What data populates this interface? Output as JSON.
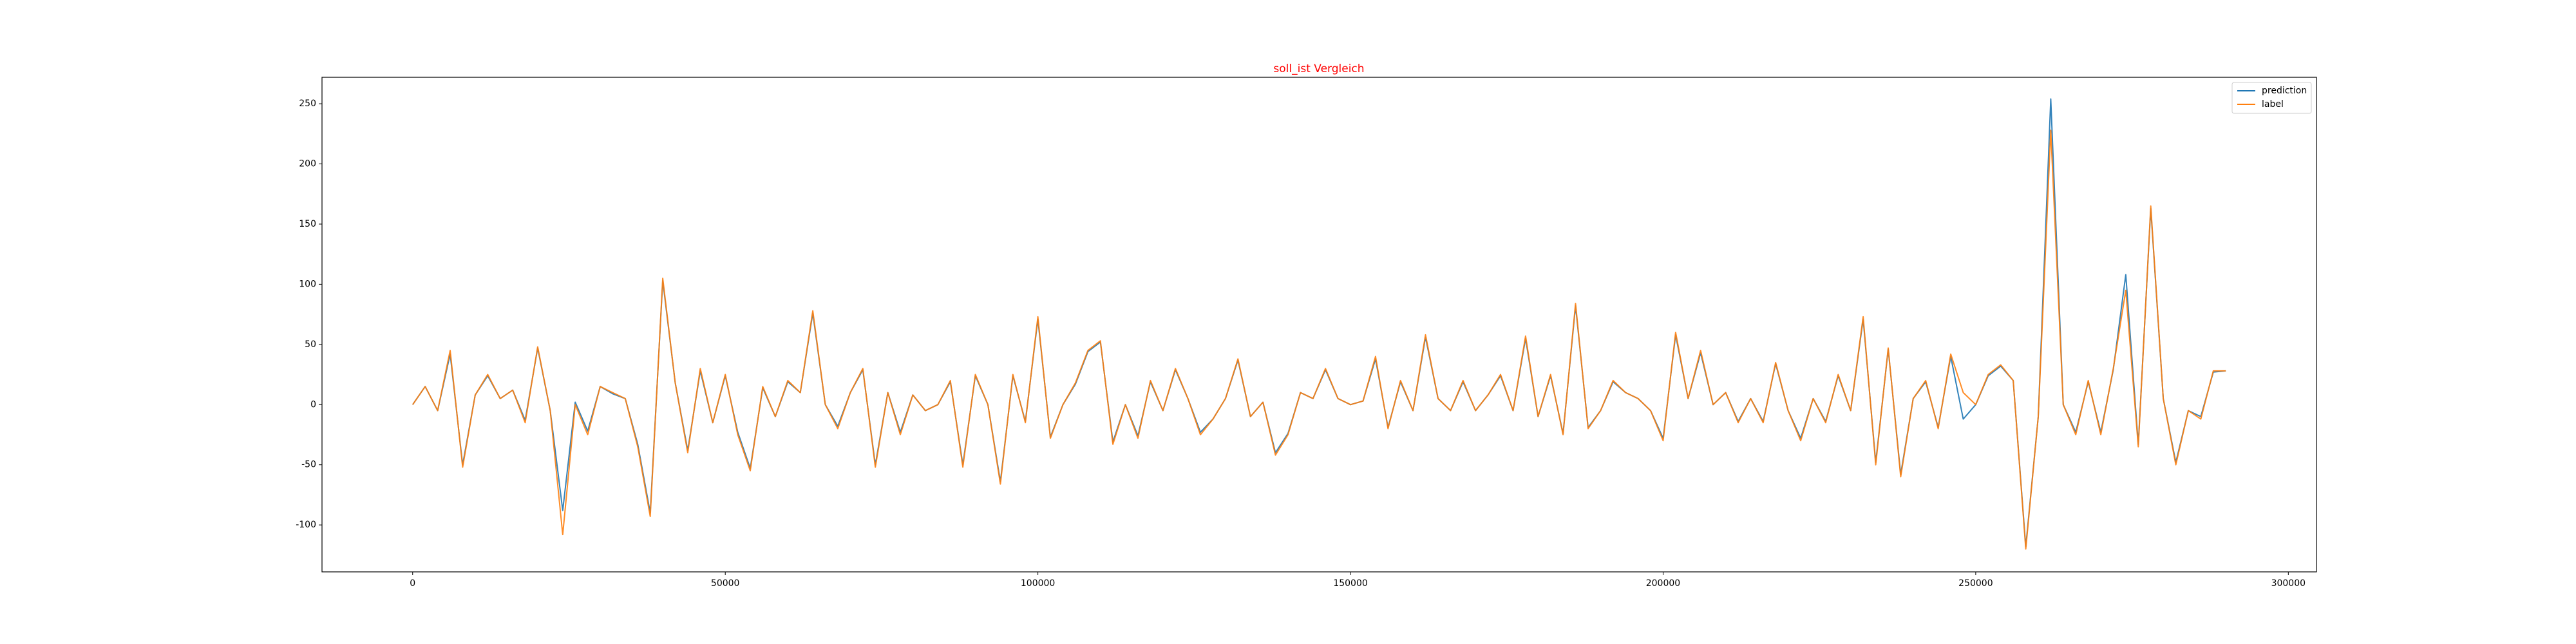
{
  "chart_data": {
    "type": "line",
    "title": "soll_ist Vergleich",
    "title_color": "#ff0000",
    "x": [
      0,
      2000,
      4000,
      6000,
      8000,
      10000,
      12000,
      14000,
      16000,
      18000,
      20000,
      22000,
      24000,
      26000,
      28000,
      30000,
      32000,
      34000,
      36000,
      38000,
      40000,
      42000,
      44000,
      46000,
      48000,
      50000,
      52000,
      54000,
      56000,
      58000,
      60000,
      62000,
      64000,
      66000,
      68000,
      70000,
      72000,
      74000,
      76000,
      78000,
      80000,
      82000,
      84000,
      86000,
      88000,
      90000,
      92000,
      94000,
      96000,
      98000,
      100000,
      102000,
      104000,
      106000,
      108000,
      110000,
      112000,
      114000,
      116000,
      118000,
      120000,
      122000,
      124000,
      126000,
      128000,
      130000,
      132000,
      134000,
      136000,
      138000,
      140000,
      142000,
      144000,
      146000,
      148000,
      150000,
      152000,
      154000,
      156000,
      158000,
      160000,
      162000,
      164000,
      166000,
      168000,
      170000,
      172000,
      174000,
      176000,
      178000,
      180000,
      182000,
      184000,
      186000,
      188000,
      190000,
      192000,
      194000,
      196000,
      198000,
      200000,
      202000,
      204000,
      206000,
      208000,
      210000,
      212000,
      214000,
      216000,
      218000,
      220000,
      222000,
      224000,
      226000,
      228000,
      230000,
      232000,
      234000,
      236000,
      238000,
      240000,
      242000,
      244000,
      246000,
      248000,
      250000,
      252000,
      254000,
      256000,
      258000,
      260000,
      262000,
      264000,
      266000,
      268000,
      270000,
      272000,
      274000,
      276000,
      278000,
      280000,
      282000,
      284000,
      286000,
      288000,
      290000
    ],
    "series": [
      {
        "name": "prediction",
        "color": "#1f77b4",
        "values": [
          0,
          15,
          -5,
          42,
          -50,
          8,
          24,
          5,
          12,
          -13,
          47,
          -5,
          -88,
          2,
          -22,
          15,
          9,
          5,
          -33,
          -90,
          103,
          18,
          -38,
          28,
          -15,
          24,
          -23,
          -53,
          14,
          -10,
          19,
          10,
          76,
          0,
          -18,
          10,
          29,
          -50,
          10,
          -23,
          8,
          -5,
          0,
          19,
          -50,
          24,
          0,
          -64,
          24,
          -14,
          71,
          -27,
          0,
          17,
          44,
          52,
          -31,
          0,
          -26,
          19,
          -5,
          29,
          5,
          -23,
          -12,
          5,
          37,
          -10,
          2,
          -40,
          -24,
          10,
          5,
          29,
          5,
          0,
          3,
          38,
          -19,
          19,
          -5,
          56,
          5,
          -5,
          19,
          -5,
          8,
          24,
          -5,
          55,
          -10,
          24,
          -24,
          82,
          -19,
          -5,
          19,
          10,
          5,
          -5,
          -28,
          58,
          5,
          43,
          0,
          10,
          -14,
          5,
          -14,
          34,
          -5,
          -28,
          5,
          -14,
          24,
          -5,
          71,
          -48,
          46,
          -58,
          5,
          19,
          -19,
          40,
          -12,
          0,
          24,
          32,
          20,
          -118,
          -10,
          254,
          0,
          -23,
          19,
          -23,
          29,
          108,
          -33,
          163,
          5,
          -48,
          -5,
          -10,
          27,
          28
        ]
      },
      {
        "name": "label",
        "color": "#ff7f0e",
        "values": [
          0,
          15,
          -5,
          45,
          -52,
          8,
          25,
          5,
          12,
          -15,
          48,
          -5,
          -108,
          0,
          -25,
          15,
          10,
          5,
          -35,
          -93,
          105,
          18,
          -40,
          30,
          -15,
          25,
          -25,
          -55,
          15,
          -10,
          20,
          10,
          78,
          0,
          -20,
          10,
          30,
          -52,
          10,
          -25,
          8,
          -5,
          0,
          20,
          -52,
          25,
          0,
          -66,
          25,
          -15,
          73,
          -28,
          0,
          18,
          45,
          53,
          -33,
          0,
          -28,
          20,
          -5,
          30,
          5,
          -25,
          -12,
          5,
          38,
          -10,
          2,
          -42,
          -25,
          10,
          5,
          30,
          5,
          0,
          3,
          40,
          -20,
          20,
          -5,
          58,
          5,
          -5,
          20,
          -5,
          8,
          25,
          -5,
          57,
          -10,
          25,
          -25,
          84,
          -20,
          -5,
          20,
          10,
          5,
          -5,
          -30,
          60,
          5,
          45,
          0,
          10,
          -15,
          5,
          -15,
          35,
          -5,
          -30,
          5,
          -15,
          25,
          -5,
          73,
          -50,
          47,
          -60,
          5,
          20,
          -20,
          42,
          10,
          0,
          25,
          33,
          20,
          -120,
          -10,
          228,
          0,
          -25,
          20,
          -25,
          30,
          95,
          -35,
          165,
          5,
          -50,
          -5,
          -12,
          28,
          28
        ]
      }
    ],
    "xlim": [
      -14500,
      304500
    ],
    "xticks": [
      0,
      50000,
      100000,
      150000,
      200000,
      250000,
      300000
    ],
    "ylim": [
      -139,
      272
    ],
    "yticks": [
      -100,
      -50,
      0,
      50,
      100,
      150,
      200,
      250
    ],
    "grid": false,
    "legend": "upper right"
  }
}
